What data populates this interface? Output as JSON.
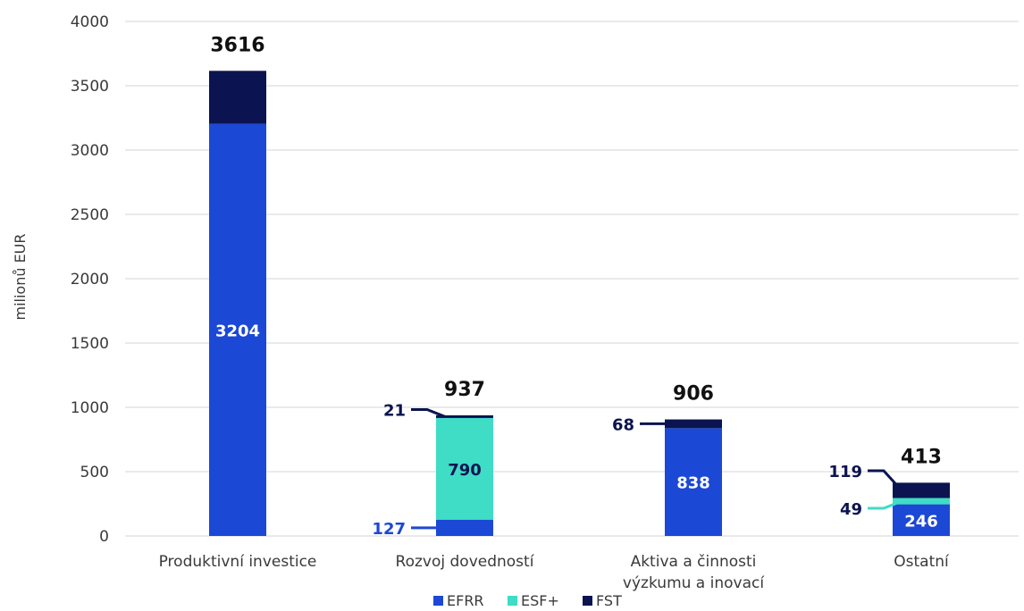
{
  "chart_data": {
    "type": "bar",
    "stacked": true,
    "ylabel": "milionů EUR",
    "ylim": [
      0,
      4000
    ],
    "yticks": [
      0,
      500,
      1000,
      1500,
      2000,
      2500,
      3000,
      3500,
      4000
    ],
    "grid": true,
    "legend_position": "bottom",
    "categories": [
      "Produktivní investice",
      "Rozvoj dovedností",
      "Aktiva a činnosti výzkumu a inovací",
      "Ostatní"
    ],
    "series": [
      {
        "name": "EFRR",
        "color": "#1c48d6",
        "values": [
          3204,
          127,
          838,
          246
        ]
      },
      {
        "name": "ESF+",
        "color": "#3fdcc6",
        "values": [
          0,
          790,
          0,
          49
        ]
      },
      {
        "name": "FST",
        "color": "#0b1450",
        "values": [
          412,
          21,
          68,
          119
        ]
      }
    ],
    "totals": [
      3616,
      937,
      906,
      413
    ],
    "data_labels": [
      [
        {
          "series": 0,
          "text": "3204",
          "placement": "inside"
        }
      ],
      [
        {
          "series": 0,
          "text": "127",
          "placement": "left"
        },
        {
          "series": 1,
          "text": "790",
          "placement": "inside"
        },
        {
          "series": 2,
          "text": "21",
          "placement": "left"
        }
      ],
      [
        {
          "series": 0,
          "text": "838",
          "placement": "inside"
        },
        {
          "series": 2,
          "text": "68",
          "placement": "left"
        }
      ],
      [
        {
          "series": 0,
          "text": "246",
          "placement": "inside"
        },
        {
          "series": 1,
          "text": "49",
          "placement": "left"
        },
        {
          "series": 2,
          "text": "119",
          "placement": "left"
        }
      ]
    ]
  }
}
